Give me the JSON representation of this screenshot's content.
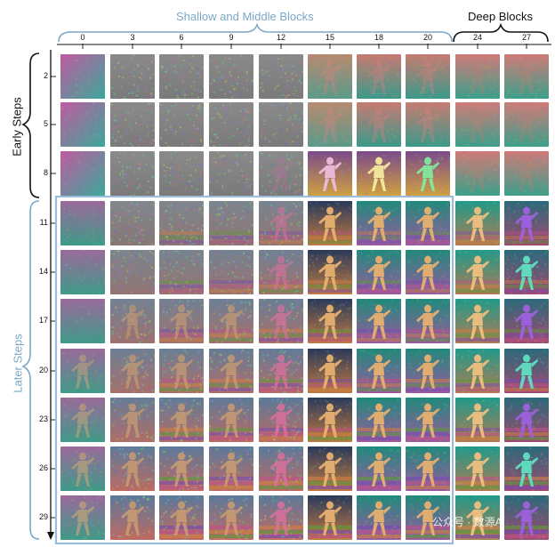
{
  "headers": {
    "shallow_middle": "Shallow and Middle Blocks",
    "deep": "Deep Blocks",
    "early_steps": "Early Steps",
    "later_steps": "Later Steps"
  },
  "columns": [
    "0",
    "3",
    "6",
    "9",
    "12",
    "15",
    "18",
    "20",
    "24",
    "27"
  ],
  "rows": [
    "2",
    "5",
    "8",
    "11",
    "14",
    "17",
    "20",
    "23",
    "26",
    "29"
  ],
  "colors": {
    "shallow_bracket": "#7aa8c8",
    "deep_bracket": "#111111",
    "highlight_box": "#9cbcd8",
    "later_steps_label": "#7aa8c8"
  },
  "watermark": "公众号 · 数源AI"
}
